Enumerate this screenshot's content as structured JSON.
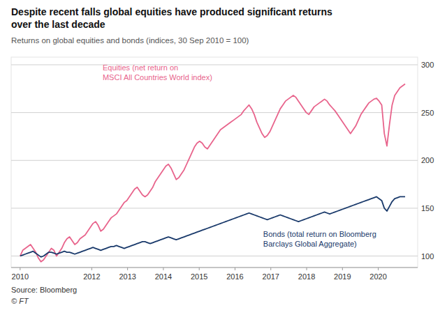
{
  "chart_data": {
    "type": "line",
    "title": [
      "Despite recent falls global equities have produced significant returns",
      "over the last decade"
    ],
    "subtitle": "Returns on global equities and bonds (indices, 30 Sep 2010 = 100)",
    "source": "Source: Bloomberg",
    "copyright": "© FT",
    "xlim": [
      2009.75,
      2021.1
    ],
    "xticks": [
      2010,
      2012,
      2013,
      2014,
      2015,
      2016,
      2017,
      2018,
      2019,
      2020
    ],
    "ylim": [
      88,
      308
    ],
    "yticks": [
      100,
      150,
      200,
      250,
      300
    ],
    "grid": true,
    "x": [
      2010,
      2010.0726,
      2010.1453,
      2010.2179,
      2010.2905,
      2010.3632,
      2010.4358,
      2010.5084,
      2010.5811,
      2010.6537,
      2010.7264,
      2010.799,
      2010.8716,
      2010.9443,
      2011.0169,
      2011.0895,
      2011.1622,
      2011.2348,
      2011.3074,
      2011.3801,
      2011.4527,
      2011.5253,
      2011.598,
      2011.6706,
      2011.7432,
      2011.8159,
      2011.8885,
      2011.9611,
      2012.0338,
      2012.1064,
      2012.1791,
      2012.2517,
      2012.3243,
      2012.397,
      2012.4696,
      2012.5422,
      2012.6149,
      2012.6875,
      2012.7601,
      2012.8328,
      2012.9054,
      2012.978,
      2013.0507,
      2013.1233,
      2013.1959,
      2013.2686,
      2013.3412,
      2013.4139,
      2013.4865,
      2013.5591,
      2013.6318,
      2013.7044,
      2013.777,
      2013.8497,
      2013.9223,
      2013.9949,
      2014.0676,
      2014.1402,
      2014.2128,
      2014.2855,
      2014.3581,
      2014.4307,
      2014.5034,
      2014.576,
      2014.6486,
      2014.7213,
      2014.7939,
      2014.8666,
      2014.9392,
      2015.0118,
      2015.0845,
      2015.1571,
      2015.2297,
      2015.3024,
      2015.375,
      2015.4476,
      2015.5203,
      2015.5929,
      2015.6655,
      2015.7382,
      2015.8108,
      2015.8834,
      2015.9561,
      2016.0287,
      2016.1014,
      2016.174,
      2016.2466,
      2016.3193,
      2016.3919,
      2016.4645,
      2016.5372,
      2016.6098,
      2016.6824,
      2016.7551,
      2016.8277,
      2016.9003,
      2016.973,
      2017.0456,
      2017.1182,
      2017.1909,
      2017.2635,
      2017.3361,
      2017.4088,
      2017.4814,
      2017.5541,
      2017.6267,
      2017.6993,
      2017.772,
      2017.8446,
      2017.9172,
      2017.9899,
      2018.0625,
      2018.1351,
      2018.2078,
      2018.2804,
      2018.353,
      2018.4257,
      2018.4983,
      2018.5709,
      2018.6436,
      2018.7162,
      2018.7889,
      2018.8615,
      2018.9341,
      2019.0068,
      2019.0794,
      2019.152,
      2019.2247,
      2019.2973,
      2019.3699,
      2019.4426,
      2019.5152,
      2019.5878,
      2019.6605,
      2019.7331,
      2019.8057,
      2019.8784,
      2019.951,
      2020.0236,
      2020.0963,
      2020.1689,
      2020.2416,
      2020.3142,
      2020.3868,
      2020.4595,
      2020.5321,
      2020.6047,
      2020.6774,
      2020.75
    ],
    "series": [
      {
        "label": [
          "Equities (net return on",
          "MSCI All Countries World index)"
        ],
        "color": "#e8648c",
        "values": [
          100,
          106,
          108,
          110,
          112,
          108,
          104,
          98,
          94,
          96,
          100,
          104,
          108,
          106,
          100,
          104,
          108,
          114,
          118,
          120,
          116,
          112,
          114,
          118,
          120,
          122,
          126,
          130,
          134,
          136,
          132,
          126,
          128,
          132,
          136,
          140,
          142,
          144,
          148,
          152,
          156,
          158,
          162,
          166,
          170,
          172,
          168,
          164,
          162,
          164,
          168,
          172,
          178,
          182,
          186,
          190,
          194,
          196,
          192,
          186,
          180,
          182,
          186,
          190,
          196,
          202,
          208,
          214,
          218,
          220,
          218,
          214,
          212,
          216,
          220,
          224,
          228,
          232,
          234,
          236,
          238,
          240,
          242,
          244,
          246,
          248,
          252,
          255,
          258,
          254,
          248,
          240,
          234,
          228,
          224,
          226,
          230,
          236,
          242,
          248,
          254,
          258,
          262,
          264,
          266,
          268,
          266,
          262,
          258,
          254,
          250,
          248,
          252,
          256,
          258,
          260,
          262,
          264,
          262,
          258,
          255,
          252,
          248,
          244,
          240,
          236,
          232,
          228,
          232,
          236,
          242,
          248,
          252,
          256,
          260,
          262,
          264,
          265,
          262,
          258,
          228,
          215,
          238,
          258,
          268,
          272,
          276,
          278,
          280
        ]
      },
      {
        "label": [
          "Bonds (total return on Bloomberg",
          "Barclays Global Aggregate)"
        ],
        "color": "#1a3a6b",
        "values": [
          100,
          101,
          102,
          103,
          104,
          105,
          103,
          101,
          99,
          100,
          102,
          104,
          104,
          103,
          102,
          103,
          104,
          105,
          104,
          104,
          103,
          102,
          103,
          104,
          105,
          106,
          107,
          108,
          109,
          108,
          107,
          106,
          107,
          108,
          109,
          110,
          110,
          111,
          110,
          109,
          108,
          109,
          110,
          111,
          112,
          113,
          114,
          115,
          115,
          114,
          113,
          114,
          115,
          116,
          117,
          118,
          119,
          120,
          119,
          118,
          117,
          118,
          119,
          120,
          121,
          122,
          123,
          124,
          125,
          126,
          127,
          128,
          129,
          130,
          131,
          132,
          133,
          134,
          135,
          136,
          137,
          138,
          139,
          140,
          141,
          142,
          143,
          144,
          145,
          144,
          143,
          142,
          141,
          140,
          139,
          138,
          139,
          140,
          141,
          142,
          143,
          142,
          141,
          140,
          139,
          138,
          137,
          136,
          137,
          138,
          139,
          140,
          141,
          142,
          143,
          144,
          145,
          146,
          145,
          144,
          145,
          146,
          147,
          148,
          149,
          150,
          151,
          152,
          153,
          154,
          155,
          156,
          157,
          158,
          159,
          160,
          161,
          162,
          160,
          158,
          150,
          147,
          152,
          157,
          160,
          161,
          162,
          162,
          162
        ]
      }
    ]
  }
}
